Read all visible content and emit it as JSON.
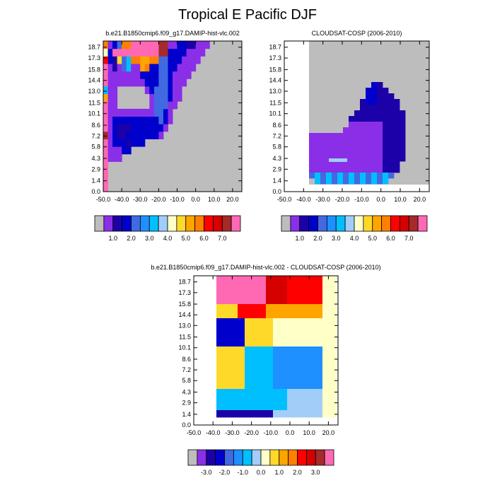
{
  "page": {
    "title": "Tropical E Pacific DJF"
  },
  "palettes": {
    "cloud": [
      "#bdbdbd",
      "#8b2ee8",
      "#1c00a8",
      "#0000cd",
      "#4169e1",
      "#1e90ff",
      "#00bfff",
      "#a2cdf9",
      "#ffffc8",
      "#ffd92a",
      "#ffa500",
      "#ff7f00",
      "#ff0000",
      "#d60000",
      "#a52a2a",
      "#ff69b4"
    ],
    "diff": [
      "#bdbdbd",
      "#8b2ee8",
      "#1c00a8",
      "#0000cd",
      "#4169e1",
      "#1e90ff",
      "#00bfff",
      "#a2cdf9",
      "#ffffc8",
      "#ffd92a",
      "#ffa500",
      "#ff7f00",
      "#ff0000",
      "#d60000",
      "#a52a2a",
      "#ff69b4"
    ]
  },
  "chart_data": [
    {
      "type": "heatmap",
      "title": "b.e21.B1850cmip6.f09_g17.DAMIP-hist-vlc.002",
      "x_ticks": [
        "-50.0",
        "-40.0",
        "-30.0",
        "-20.0",
        "-10.0",
        "0.0",
        "10.0",
        "20.0"
      ],
      "y_ticks": [
        "0.0",
        "1.4",
        "2.9",
        "4.3",
        "5.8",
        "7.2",
        "8.6",
        "10.1",
        "11.5",
        "13.0",
        "14.4",
        "15.8",
        "17.3",
        "18.7"
      ],
      "colorbar_labels": [
        "1.0",
        "2.0",
        "3.0",
        "4.0",
        "5.0",
        "6.0",
        "7.0"
      ],
      "xlim": [
        -50,
        25
      ],
      "ylim": [
        0,
        19.5
      ],
      "missing_color_index": 0,
      "grid": [
        [
          15,
          0,
          0,
          0,
          0,
          0,
          0,
          0,
          0,
          0,
          0,
          0,
          0,
          0,
          0,
          0,
          0,
          0,
          0,
          0,
          0,
          0,
          0,
          0,
          0,
          0,
          0,
          0,
          0,
          0
        ],
        [
          15,
          0,
          0,
          0,
          0,
          0,
          0,
          0,
          0,
          0,
          0,
          0,
          0,
          0,
          0,
          0,
          0,
          0,
          0,
          0,
          0,
          0,
          0,
          0,
          0,
          0,
          0,
          0,
          0,
          0
        ],
        [
          15,
          0,
          0,
          0,
          0,
          0,
          0,
          0,
          0,
          0,
          0,
          0,
          0,
          0,
          0,
          0,
          0,
          0,
          0,
          0,
          0,
          0,
          0,
          0,
          0,
          0,
          0,
          0,
          0,
          0
        ],
        [
          15,
          0,
          0,
          0,
          0,
          0,
          0,
          0,
          0,
          0,
          0,
          0,
          0,
          0,
          0,
          0,
          0,
          0,
          0,
          0,
          0,
          0,
          0,
          0,
          0,
          0,
          0,
          0,
          0,
          0
        ],
        [
          15,
          1,
          1,
          1,
          0,
          0,
          0,
          0,
          0,
          0,
          0,
          0,
          0,
          0,
          0,
          0,
          0,
          0,
          0,
          0,
          0,
          0,
          0,
          0,
          0,
          0,
          0,
          0,
          0,
          0
        ],
        [
          15,
          1,
          1,
          1,
          3,
          3,
          0,
          0,
          0,
          0,
          0,
          0,
          0,
          0,
          0,
          0,
          0,
          0,
          0,
          0,
          0,
          0,
          0,
          0,
          0,
          0,
          0,
          0,
          0,
          0
        ],
        [
          15,
          1,
          3,
          3,
          3,
          2,
          3,
          3,
          3,
          0,
          0,
          0,
          0,
          0,
          0,
          0,
          0,
          0,
          0,
          0,
          0,
          0,
          0,
          0,
          0,
          0,
          0,
          0,
          0,
          0
        ],
        [
          14,
          1,
          3,
          2,
          2,
          3,
          3,
          3,
          3,
          3,
          3,
          3,
          1,
          0,
          0,
          0,
          0,
          0,
          0,
          0,
          0,
          0,
          0,
          0,
          0,
          0,
          0,
          0,
          0,
          0
        ],
        [
          15,
          1,
          3,
          2,
          2,
          2,
          3,
          3,
          3,
          3,
          3,
          3,
          3,
          1,
          0,
          0,
          0,
          0,
          0,
          0,
          0,
          0,
          0,
          0,
          0,
          0,
          0,
          0,
          0,
          0
        ],
        [
          15,
          1,
          3,
          3,
          3,
          3,
          3,
          3,
          3,
          3,
          3,
          3,
          4,
          3,
          1,
          0,
          0,
          0,
          0,
          0,
          0,
          0,
          0,
          0,
          0,
          0,
          0,
          0,
          0,
          0
        ],
        [
          15,
          1,
          1,
          1,
          1,
          1,
          1,
          1,
          1,
          1,
          1,
          4,
          4,
          3,
          1,
          0,
          0,
          0,
          0,
          0,
          0,
          0,
          0,
          0,
          0,
          0,
          0,
          0,
          0,
          0
        ],
        [
          15,
          1,
          1,
          0,
          0,
          0,
          0,
          0,
          0,
          0,
          1,
          4,
          4,
          4,
          1,
          1,
          0,
          0,
          0,
          0,
          0,
          0,
          0,
          0,
          0,
          0,
          0,
          0,
          0,
          0
        ],
        [
          10,
          1,
          1,
          0,
          0,
          0,
          0,
          0,
          0,
          0,
          1,
          4,
          4,
          4,
          3,
          1,
          1,
          0,
          0,
          0,
          0,
          0,
          0,
          0,
          0,
          0,
          0,
          0,
          0,
          0
        ],
        [
          6,
          1,
          1,
          0,
          0,
          0,
          0,
          0,
          0,
          1,
          3,
          4,
          4,
          4,
          3,
          1,
          1,
          0,
          0,
          0,
          0,
          0,
          0,
          0,
          0,
          0,
          0,
          0,
          0,
          0
        ],
        [
          15,
          1,
          1,
          1,
          1,
          1,
          1,
          1,
          1,
          3,
          3,
          3,
          4,
          4,
          3,
          1,
          1,
          1,
          0,
          0,
          0,
          0,
          0,
          0,
          0,
          0,
          0,
          0,
          0,
          0
        ],
        [
          15,
          1,
          1,
          1,
          1,
          1,
          1,
          1,
          3,
          3,
          3,
          3,
          4,
          4,
          3,
          1,
          1,
          1,
          1,
          0,
          0,
          0,
          0,
          0,
          0,
          0,
          0,
          0,
          0,
          0
        ],
        [
          15,
          1,
          2,
          1,
          4,
          6,
          1,
          1,
          10,
          11,
          3,
          3,
          4,
          4,
          3,
          3,
          1,
          1,
          1,
          1,
          0,
          0,
          0,
          0,
          0,
          0,
          0,
          0,
          0,
          0
        ],
        [
          12,
          3,
          2,
          9,
          4,
          6,
          11,
          11,
          10,
          10,
          11,
          11,
          4,
          4,
          3,
          3,
          3,
          1,
          1,
          1,
          1,
          0,
          0,
          0,
          0,
          0,
          0,
          0,
          0,
          0
        ],
        [
          8,
          3,
          15,
          15,
          15,
          15,
          15,
          15,
          15,
          15,
          15,
          15,
          14,
          14,
          3,
          3,
          3,
          3,
          1,
          1,
          1,
          1,
          0,
          0,
          0,
          0,
          0,
          0,
          0,
          0
        ],
        [
          11,
          1,
          3,
          4,
          11,
          11,
          15,
          15,
          15,
          15,
          15,
          15,
          14,
          14,
          1,
          1,
          3,
          3,
          2,
          2,
          1,
          1,
          1,
          0,
          0,
          0,
          0,
          0,
          0,
          0
        ]
      ]
    },
    {
      "type": "heatmap",
      "title": "CLOUDSAT-COSP (2006-2010)",
      "x_ticks": [
        "-50.0",
        "-40.0",
        "-30.0",
        "-20.0",
        "-10.0",
        "0.0",
        "10.0",
        "20.0"
      ],
      "y_ticks": [
        "0.0",
        "1.4",
        "2.9",
        "4.3",
        "5.8",
        "7.2",
        "8.6",
        "10.1",
        "11.5",
        "13.0",
        "14.4",
        "15.8",
        "17.3",
        "18.7"
      ],
      "colorbar_labels": [
        "1.0",
        "2.0",
        "3.0",
        "4.0",
        "5.0",
        "6.0",
        "7.0"
      ],
      "xlim": [
        -50,
        25
      ],
      "ylim": [
        0,
        19.5
      ]
    },
    {
      "type": "heatmap",
      "title": "b.e21.B1850cmip6.f09_g17.DAMIP-hist-vlc.002 - CLOUDSAT-COSP (2006-2010)",
      "x_ticks": [
        "-50.0",
        "-40.0",
        "-30.0",
        "-20.0",
        "-10.0",
        "0.0",
        "10.0",
        "20.0"
      ],
      "y_ticks": [
        "0.0",
        "1.4",
        "2.9",
        "4.3",
        "5.8",
        "7.2",
        "8.6",
        "10.1",
        "11.5",
        "13.0",
        "14.4",
        "15.8",
        "17.3",
        "18.7"
      ],
      "colorbar_labels": [
        "-3.0",
        "-2.0",
        "-1.0",
        "0.0",
        "1.0",
        "2.0",
        "3.0"
      ],
      "xlim": [
        -50,
        25
      ],
      "ylim": [
        0,
        19.5
      ]
    }
  ]
}
